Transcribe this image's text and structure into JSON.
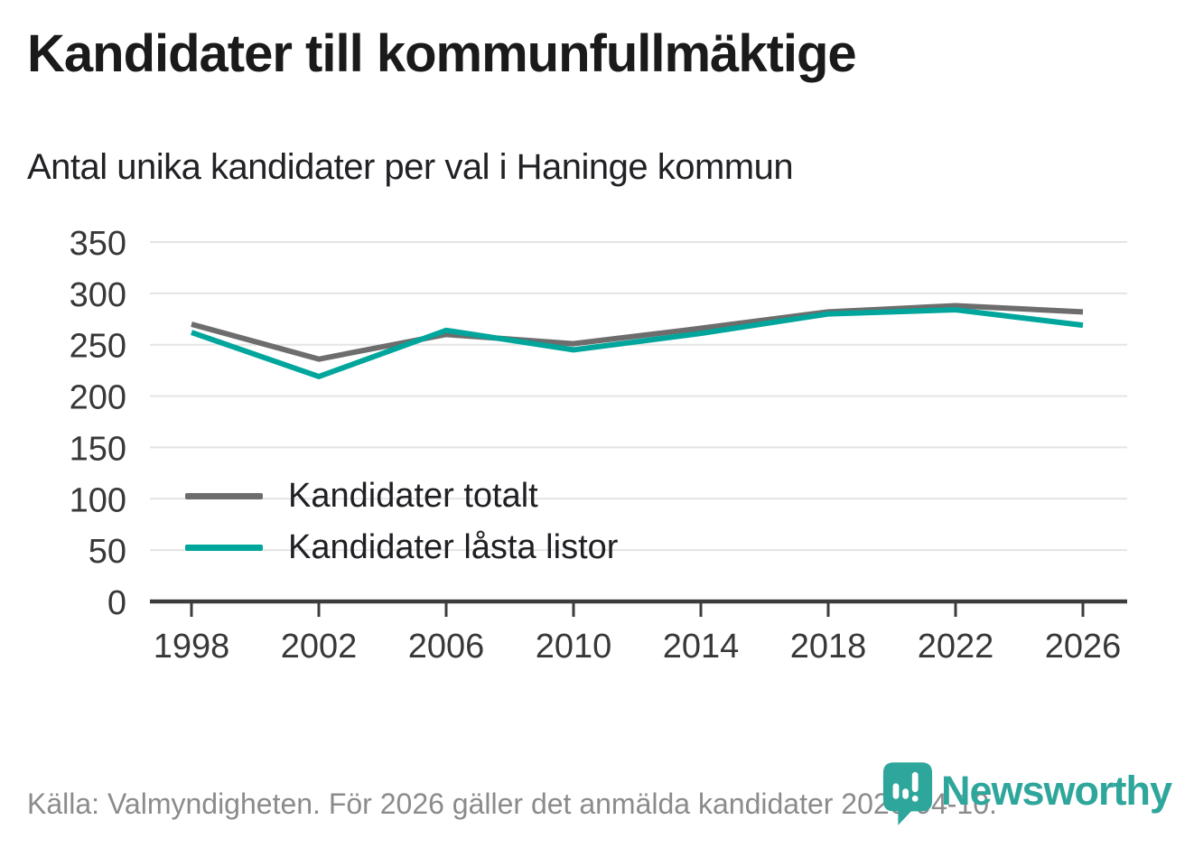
{
  "page": {
    "title": "Kandidater till kommunfullmäktige",
    "subtitle": "Antal unika kandidater per val i Haninge kommun",
    "footer": "Källa: Valmyndigheten. För 2026 gäller det anmälda kandidater 2026-04-10.",
    "brand": {
      "name": "Newsworthy",
      "logo_icon": "newsworthy-pin-barchart-icon"
    }
  },
  "colors": {
    "accent_teal": "#00a69b",
    "line_gray": "#6d6d6d",
    "brand_teal": "#2fa69b",
    "grid": "#e4e4e4",
    "axis": "#3c3c3e",
    "title_text": "#1a1a1a",
    "subtitle_text": "#222226",
    "tick_text": "#38383a",
    "footer_text": "#8b8b8d",
    "legend_text": "#202024"
  },
  "chart_data": {
    "type": "line",
    "title": "Kandidater till kommunfullmäktige",
    "subtitle": "Antal unika kandidater per val i Haninge kommun",
    "x": [
      1998,
      2002,
      2006,
      2010,
      2014,
      2018,
      2022,
      2026
    ],
    "series": [
      {
        "name": "Kandidater totalt",
        "color": "#6d6d6d",
        "values": [
          270,
          236,
          260,
          251,
          266,
          282,
          288,
          282
        ]
      },
      {
        "name": "Kandidater låsta listor",
        "color": "#00a69b",
        "values": [
          262,
          219,
          264,
          245,
          261,
          280,
          284,
          269
        ]
      }
    ],
    "xlabel": "",
    "ylabel": "",
    "ylim": [
      0,
      350
    ],
    "ytick_step": 50,
    "yticklabels": [
      "0",
      "50",
      "100",
      "150",
      "200",
      "250",
      "300",
      "350"
    ],
    "grid": true,
    "legend_position": "inside-left"
  }
}
